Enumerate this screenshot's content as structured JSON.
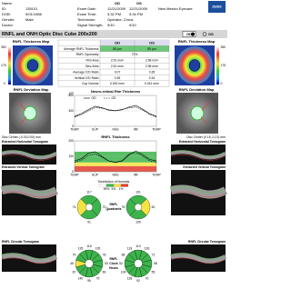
{
  "header": {
    "name_label": "Name:",
    "id_label": "ID:",
    "id": "135101",
    "dob_label": "DOB:",
    "dob": "9/01/1986",
    "gender_label": "Gender:",
    "gender": "Male",
    "doctor_label": "Doctor:",
    "od": "OD",
    "os": "OS",
    "exam_date_label": "Exam Date:",
    "exam_date_od": "12/21/2009",
    "exam_date_os": "12/21/2009",
    "exam_time_label": "Exam Time:",
    "exam_time_od": "3:32 PM",
    "exam_time_os": "3:34 PM",
    "technician_label": "Technician:",
    "technician": "Operator, Cirrus",
    "signal_label": "Signal Strength:",
    "signal_od": "9/10",
    "signal_os": "9/10",
    "clinic": "New Mexico Eyecare",
    "brand": "ZEISS"
  },
  "title_bar": {
    "title": "RNFL and ONH:Optic Disc Cube 200x200",
    "od": "OD",
    "os": "OS"
  },
  "maps": {
    "thickness_title": "RNFL Thickness Map",
    "scale": [
      "350",
      "175",
      "0"
    ],
    "deviation_title": "RNFL Deviation Map",
    "disc_center_od": "Disc Center (-0.03,0.00) mm",
    "disc_center_os": "Disc Center (0.15,-0.21) mm"
  },
  "table": {
    "header": [
      "OD",
      "OS"
    ],
    "rows": [
      [
        "Average RNFL Thickness",
        "88 µm",
        "85 µm"
      ],
      [
        "RNFL Symmetry",
        "72%"
      ],
      [
        "Rim Area",
        "2.51 mm²",
        "2.98 mm²"
      ],
      [
        "Disc Area",
        "2.51 mm²",
        "2.98 mm²"
      ],
      [
        "Average C/D Ratio",
        "0.07",
        "0.35"
      ],
      [
        "Vertical C/D Ratio",
        "0.35",
        "0.34"
      ],
      [
        "Cup Volume",
        "0.000 mm³",
        "0.041 mm³"
      ]
    ]
  },
  "tomograms": {
    "horizontal": "Extracted Horizontal Tomogram",
    "vertical": "Extracted Vertical Tomogram",
    "circular": "RNFL Circular Tomogram"
  },
  "chart_data": [
    {
      "type": "line",
      "title": "Neuro-retinal Rim Thickness",
      "y_label": "µm",
      "xlim": [
        0,
        360
      ],
      "xticks": [
        {
          "value": 0,
          "label": "TEMP"
        },
        {
          "value": 90,
          "label": "SUP"
        },
        {
          "value": 180,
          "label": "NAS"
        },
        {
          "value": 270,
          "label": "INF"
        },
        {
          "value": 360,
          "label": "TEMP"
        }
      ],
      "ylim": [
        0,
        800
      ],
      "yticks": [
        0,
        400,
        800
      ],
      "x": [
        0,
        30,
        60,
        90,
        120,
        150,
        180,
        210,
        240,
        270,
        300,
        330,
        360
      ],
      "series": [
        {
          "name": "OD",
          "color": "#000000",
          "dash": false,
          "values": [
            260,
            330,
            430,
            520,
            480,
            420,
            400,
            430,
            500,
            540,
            440,
            330,
            260
          ]
        },
        {
          "name": "OS",
          "color": "#000000",
          "dash": true,
          "values": [
            240,
            300,
            400,
            480,
            470,
            430,
            410,
            440,
            480,
            500,
            420,
            310,
            240
          ]
        }
      ]
    },
    {
      "type": "line",
      "title": "RNFL Thickness",
      "xlim": [
        0,
        360
      ],
      "xticks": [
        {
          "value": 0,
          "label": "TEMP"
        },
        {
          "value": 90,
          "label": "SUP"
        },
        {
          "value": 180,
          "label": "NAS"
        },
        {
          "value": 270,
          "label": "INF"
        },
        {
          "value": 360,
          "label": "TEMP"
        }
      ],
      "ylim": [
        0,
        200
      ],
      "yticks": [
        0,
        100,
        200
      ],
      "x": [
        0,
        30,
        60,
        90,
        120,
        150,
        180,
        210,
        240,
        270,
        300,
        330,
        360
      ],
      "series": [
        {
          "name": "OD",
          "color": "#000000",
          "dash": false,
          "values": [
            70,
            85,
            120,
            130,
            100,
            70,
            60,
            70,
            110,
            135,
            110,
            80,
            70
          ]
        },
        {
          "name": "OS",
          "color": "#000000",
          "dash": true,
          "values": [
            60,
            75,
            105,
            115,
            95,
            70,
            62,
            72,
            115,
            125,
            100,
            72,
            60
          ]
        }
      ]
    }
  ],
  "normals": {
    "title": "Distribution of Normals",
    "labels": [
      "95%",
      "5%",
      "1%"
    ],
    "colors": [
      "#ffffff",
      "#3cb44b",
      "#f5e342",
      "#e23b2e"
    ]
  },
  "quadrants": {
    "title_lines": [
      "RNFL",
      "Quadrants"
    ],
    "od": {
      "values": [
        117,
        70,
        91,
        74
      ],
      "colors": [
        "#3cb44b",
        "#3cb44b",
        "#3cb44b",
        "#f5e342"
      ]
    },
    "os": {
      "values": [
        101,
        62,
        109,
        76
      ],
      "colors": [
        "#3cb44b",
        "#f5e342",
        "#3cb44b",
        "#3cb44b"
      ]
    }
  },
  "clock_hours": {
    "title_lines": [
      "RNFL",
      "Clock",
      "Hours"
    ],
    "od": {
      "values": [
        116,
        135,
        78,
        53,
        60,
        79,
        95,
        140,
        87,
        46,
        75,
        135
      ],
      "colors": [
        "#3cb44b",
        "#3cb44b",
        "#3cb44b",
        "#3cb44b",
        "#3cb44b",
        "#3cb44b",
        "#3cb44b",
        "#3cb44b",
        "#3cb44b",
        "#f5e342",
        "#3cb44b",
        "#3cb44b"
      ]
    },
    "os": {
      "values": [
        110,
        126,
        72,
        58,
        55,
        70,
        92,
        128,
        104,
        52,
        68,
        118
      ],
      "colors": [
        "#3cb44b",
        "#3cb44b",
        "#3cb44b",
        "#3cb44b",
        "#3cb44b",
        "#3cb44b",
        "#3cb44b",
        "#3cb44b",
        "#3cb44b",
        "#3cb44b",
        "#3cb44b",
        "#3cb44b"
      ]
    }
  }
}
